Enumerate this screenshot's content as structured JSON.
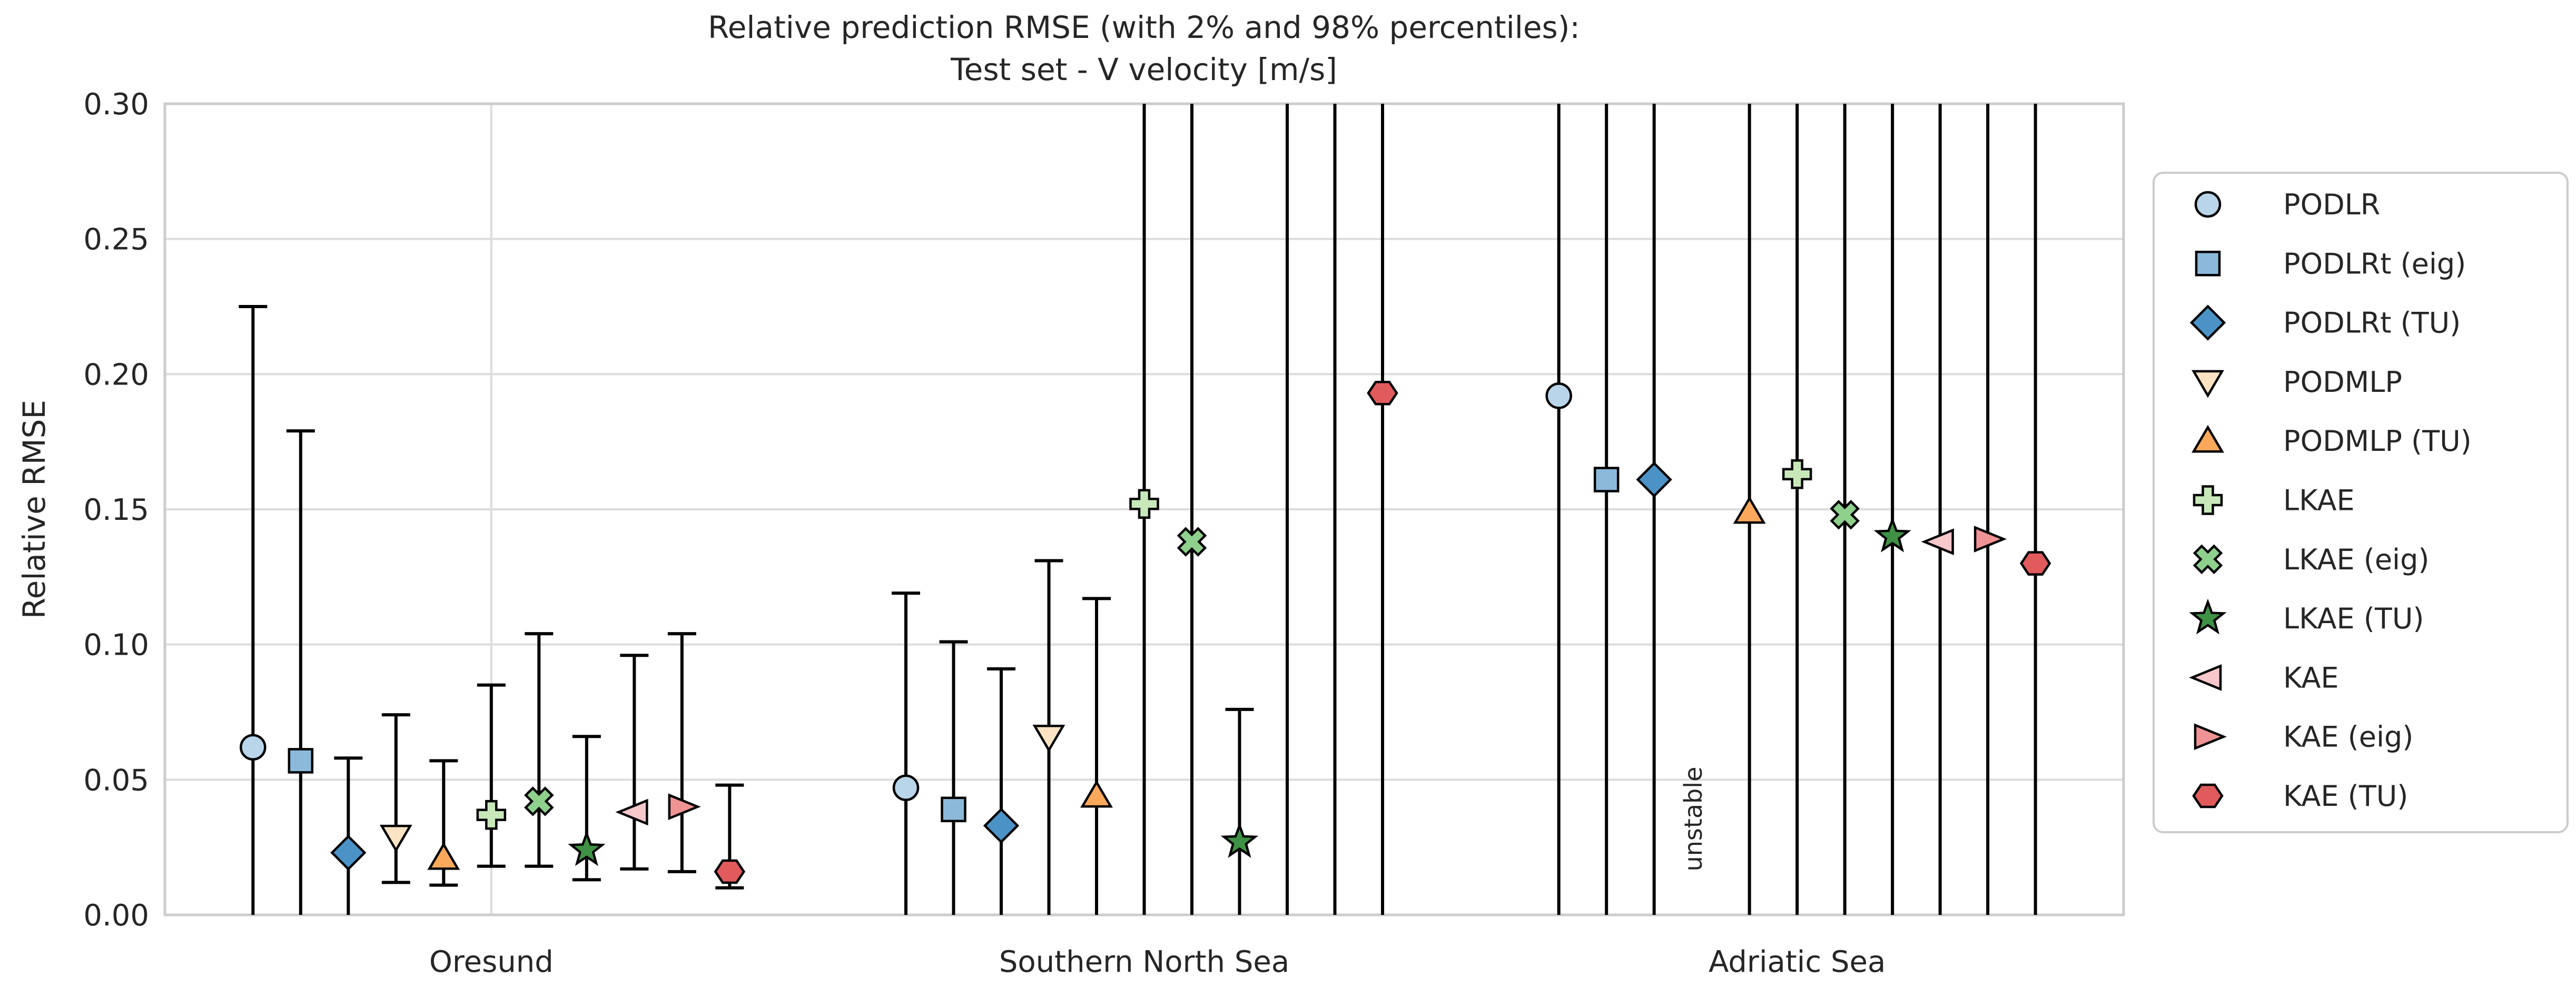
{
  "title": {
    "line1": "Relative prediction RMSE (with 2% and 98% percentiles):",
    "line2": "Test set - V velocity [m/s]"
  },
  "chart_data": {
    "type": "scatter",
    "subtype": "errorbar-scatter",
    "title": "Relative prediction RMSE (with 2% and 98% percentiles): Test set - V velocity [m/s]",
    "ylabel": "Relative RMSE",
    "xlabel": "",
    "ylim": [
      0.0,
      0.3
    ],
    "yticks": [
      0.0,
      0.05,
      0.1,
      0.15,
      0.2,
      0.25,
      0.3
    ],
    "grid": true,
    "legend_position": "right-outside",
    "error_bar_meaning": "2% and 98% percentiles",
    "unstable_label": "unstable",
    "unstable_color": "#8b1a1a",
    "categories": [
      "Oresund",
      "Southern North Sea",
      "Adriatic Sea"
    ],
    "methods": [
      {
        "label": "PODLR",
        "marker": "circle",
        "color": "#b9d5ea"
      },
      {
        "label": "PODLRt (eig)",
        "marker": "square",
        "color": "#8cb9da"
      },
      {
        "label": "PODLRt (TU)",
        "marker": "diamond",
        "color": "#4b93c6"
      },
      {
        "label": "PODMLP",
        "marker": "triangle-down",
        "color": "#fce3c3"
      },
      {
        "label": "PODMLP (TU)",
        "marker": "triangle-up",
        "color": "#fba85c"
      },
      {
        "label": "LKAE",
        "marker": "plus",
        "color": "#c8e8ba"
      },
      {
        "label": "LKAE (eig)",
        "marker": "x",
        "color": "#8fd08c"
      },
      {
        "label": "LKAE (TU)",
        "marker": "star",
        "color": "#3f9245"
      },
      {
        "label": "KAE",
        "marker": "triangle-left",
        "color": "#f6c7cb"
      },
      {
        "label": "KAE (eig)",
        "marker": "triangle-right",
        "color": "#f09394"
      },
      {
        "label": "KAE (TU)",
        "marker": "hexagon",
        "color": "#e15b5d"
      }
    ],
    "series_note": "v = marker (relative RMSE), lo = 2% percentile, hi = 98% percentile; hi null = extends beyond top of axis; v null = marker above axis range; unstable = no data, text shown instead",
    "points": {
      "Oresund": [
        {
          "v": 0.062,
          "lo": 0.0,
          "hi": 0.225
        },
        {
          "v": 0.057,
          "lo": 0.0,
          "hi": 0.179
        },
        {
          "v": 0.023,
          "lo": 0.0,
          "hi": 0.058
        },
        {
          "v": 0.029,
          "lo": 0.012,
          "hi": 0.074
        },
        {
          "v": 0.021,
          "lo": 0.011,
          "hi": 0.057
        },
        {
          "v": 0.037,
          "lo": 0.018,
          "hi": 0.085
        },
        {
          "v": 0.042,
          "lo": 0.018,
          "hi": 0.104
        },
        {
          "v": 0.024,
          "lo": 0.013,
          "hi": 0.066
        },
        {
          "v": 0.038,
          "lo": 0.017,
          "hi": 0.096
        },
        {
          "v": 0.04,
          "lo": 0.016,
          "hi": 0.104
        },
        {
          "v": 0.016,
          "lo": 0.01,
          "hi": 0.048
        }
      ],
      "Southern North Sea": [
        {
          "v": 0.047,
          "lo": 0.0,
          "hi": 0.119
        },
        {
          "v": 0.039,
          "lo": 0.0,
          "hi": 0.101
        },
        {
          "v": 0.033,
          "lo": 0.0,
          "hi": 0.091
        },
        {
          "v": 0.066,
          "lo": 0.0,
          "hi": 0.131
        },
        {
          "v": 0.044,
          "lo": 0.0,
          "hi": 0.117
        },
        {
          "v": 0.152,
          "lo": 0.0,
          "hi": null
        },
        {
          "v": 0.138,
          "lo": 0.0,
          "hi": null
        },
        {
          "v": 0.027,
          "lo": 0.0,
          "hi": 0.076
        },
        {
          "v": null,
          "lo": 0.0,
          "hi": null
        },
        {
          "v": null,
          "lo": 0.0,
          "hi": null
        },
        {
          "v": 0.193,
          "lo": 0.0,
          "hi": null
        }
      ],
      "Adriatic Sea": [
        {
          "v": 0.192,
          "lo": 0.0,
          "hi": null
        },
        {
          "v": 0.161,
          "lo": 0.0,
          "hi": null
        },
        {
          "v": 0.161,
          "lo": 0.0,
          "hi": null
        },
        {
          "unstable": true
        },
        {
          "v": 0.149,
          "lo": 0.0,
          "hi": null
        },
        {
          "v": 0.163,
          "lo": 0.0,
          "hi": null
        },
        {
          "v": 0.148,
          "lo": 0.0,
          "hi": null
        },
        {
          "v": 0.14,
          "lo": 0.0,
          "hi": null
        },
        {
          "v": 0.138,
          "lo": 0.0,
          "hi": null
        },
        {
          "v": 0.139,
          "lo": 0.0,
          "hi": null
        },
        {
          "v": 0.13,
          "lo": 0.0,
          "hi": null
        }
      ]
    },
    "colors": {
      "grid": "#dcdcdc",
      "border": "#cccccc",
      "errorbar": "#000000",
      "marker_edge": "#000000",
      "text": "#262626"
    }
  }
}
